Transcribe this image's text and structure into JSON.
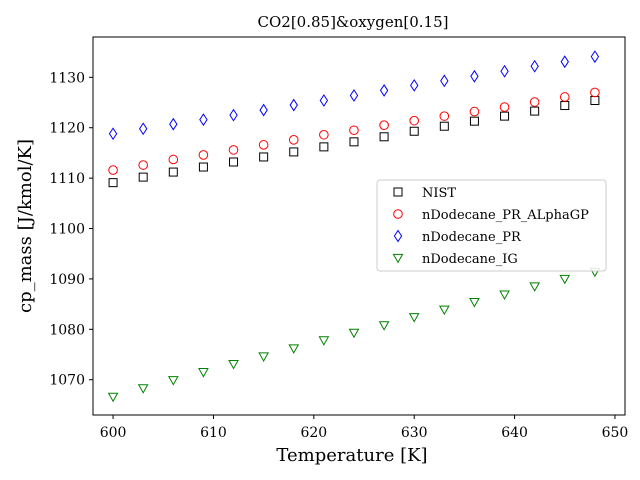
{
  "chart_data": {
    "type": "scatter",
    "title": "CO2[0.85]&oxygen[0.15]",
    "xlabel": "Temperature [K]",
    "ylabel": "cp_mass [J/kmol/K]",
    "xlim": [
      598,
      651
    ],
    "ylim": [
      1063,
      1138
    ],
    "xticks": [
      600,
      610,
      620,
      630,
      640,
      650
    ],
    "yticks": [
      1070,
      1080,
      1090,
      1100,
      1110,
      1120,
      1130
    ],
    "grid": false,
    "legend_position": "center-right",
    "x": [
      600,
      603,
      606,
      609,
      612,
      615,
      618,
      621,
      624,
      627,
      630,
      633,
      636,
      639,
      642,
      645,
      648
    ],
    "series": [
      {
        "name": "NIST",
        "marker": "square",
        "color": "#000000",
        "values": [
          1109.1,
          1110.2,
          1111.2,
          1112.2,
          1113.2,
          1114.2,
          1115.2,
          1116.2,
          1117.2,
          1118.2,
          1119.3,
          1120.3,
          1121.3,
          1122.3,
          1123.3,
          1124.4,
          1125.4
        ]
      },
      {
        "name": "nDodecane_PR_ALphaGP",
        "marker": "circle",
        "color": "#ff0000",
        "values": [
          1111.6,
          1112.6,
          1113.7,
          1114.6,
          1115.6,
          1116.6,
          1117.6,
          1118.6,
          1119.5,
          1120.5,
          1121.4,
          1122.3,
          1123.2,
          1124.1,
          1125.1,
          1126.1,
          1127.0
        ]
      },
      {
        "name": "nDodecane_PR",
        "marker": "diamond",
        "color": "#0000ff",
        "values": [
          1118.8,
          1119.8,
          1120.7,
          1121.6,
          1122.5,
          1123.5,
          1124.5,
          1125.4,
          1126.4,
          1127.4,
          1128.4,
          1129.3,
          1130.2,
          1131.2,
          1132.2,
          1133.1,
          1134.1
        ]
      },
      {
        "name": "nDodecane_IG",
        "marker": "triangle-down",
        "color": "#008000",
        "values": [
          1066.6,
          1068.3,
          1069.9,
          1071.5,
          1073.1,
          1074.6,
          1076.2,
          1077.8,
          1079.3,
          1080.8,
          1082.4,
          1083.9,
          1085.4,
          1086.9,
          1088.5,
          1090.0,
          1091.4
        ]
      }
    ]
  }
}
